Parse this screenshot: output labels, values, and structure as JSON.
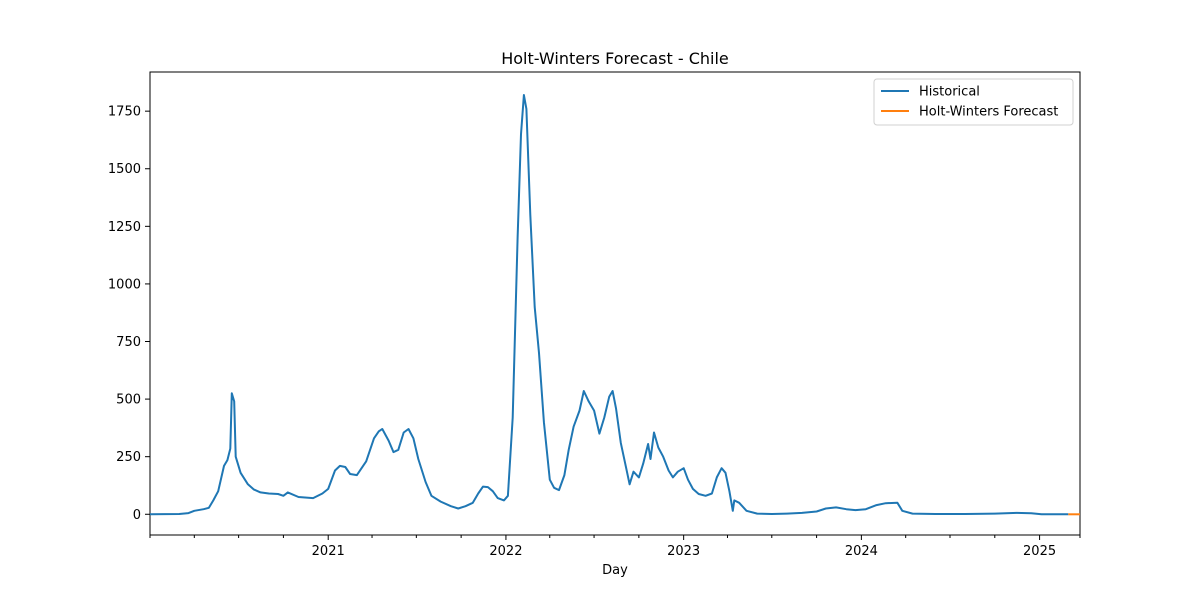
{
  "chart_data": {
    "type": "line",
    "title": "Holt-Winters Forecast - Chile",
    "xlabel": "Day",
    "ylabel": "",
    "ylim": [
      -90,
      1920
    ],
    "xlim": [
      "2020-01-01",
      "2025-03-25"
    ],
    "yticks": [
      0,
      250,
      500,
      750,
      1000,
      1250,
      1500,
      1750
    ],
    "xticks": [
      {
        "date": "2021-01-01",
        "label": "2021"
      },
      {
        "date": "2022-01-01",
        "label": "2022"
      },
      {
        "date": "2023-01-01",
        "label": "2023"
      },
      {
        "date": "2024-01-01",
        "label": "2024"
      },
      {
        "date": "2025-01-01",
        "label": "2025"
      }
    ],
    "minor_xticks": [
      "2020-01-01",
      "2020-04-01",
      "2020-07-01",
      "2020-10-01",
      "2021-04-01",
      "2021-07-01",
      "2021-10-01",
      "2022-04-01",
      "2022-07-01",
      "2022-10-01",
      "2023-04-01",
      "2023-07-01",
      "2023-10-01",
      "2024-04-01",
      "2024-07-01",
      "2024-10-01",
      "2025-03-25"
    ],
    "legend_position": "top-right",
    "series": [
      {
        "name": "Historical",
        "color": "#1f77b4",
        "points": [
          [
            "2020-01-01",
            0
          ],
          [
            "2020-03-01",
            1
          ],
          [
            "2020-03-20",
            5
          ],
          [
            "2020-04-01",
            15
          ],
          [
            "2020-04-20",
            22
          ],
          [
            "2020-05-01",
            28
          ],
          [
            "2020-05-10",
            60
          ],
          [
            "2020-05-20",
            100
          ],
          [
            "2020-06-01",
            210
          ],
          [
            "2020-06-08",
            235
          ],
          [
            "2020-06-14",
            285
          ],
          [
            "2020-06-17",
            525
          ],
          [
            "2020-06-22",
            490
          ],
          [
            "2020-06-25",
            250
          ],
          [
            "2020-07-05",
            180
          ],
          [
            "2020-07-20",
            130
          ],
          [
            "2020-08-01",
            108
          ],
          [
            "2020-08-15",
            95
          ],
          [
            "2020-09-01",
            90
          ],
          [
            "2020-09-20",
            88
          ],
          [
            "2020-10-01",
            80
          ],
          [
            "2020-10-10",
            95
          ],
          [
            "2020-11-01",
            75
          ],
          [
            "2020-12-01",
            70
          ],
          [
            "2020-12-20",
            90
          ],
          [
            "2021-01-01",
            110
          ],
          [
            "2021-01-15",
            190
          ],
          [
            "2021-01-25",
            210
          ],
          [
            "2021-02-05",
            205
          ],
          [
            "2021-02-15",
            175
          ],
          [
            "2021-03-01",
            170
          ],
          [
            "2021-03-20",
            230
          ],
          [
            "2021-04-05",
            330
          ],
          [
            "2021-04-15",
            360
          ],
          [
            "2021-04-22",
            370
          ],
          [
            "2021-05-05",
            320
          ],
          [
            "2021-05-15",
            270
          ],
          [
            "2021-05-25",
            280
          ],
          [
            "2021-06-05",
            355
          ],
          [
            "2021-06-15",
            370
          ],
          [
            "2021-06-25",
            330
          ],
          [
            "2021-07-05",
            240
          ],
          [
            "2021-07-20",
            140
          ],
          [
            "2021-08-01",
            80
          ],
          [
            "2021-08-20",
            55
          ],
          [
            "2021-09-10",
            35
          ],
          [
            "2021-09-25",
            25
          ],
          [
            "2021-10-10",
            35
          ],
          [
            "2021-10-25",
            50
          ],
          [
            "2021-11-05",
            90
          ],
          [
            "2021-11-15",
            120
          ],
          [
            "2021-11-25",
            118
          ],
          [
            "2021-12-05",
            100
          ],
          [
            "2021-12-15",
            70
          ],
          [
            "2021-12-28",
            60
          ],
          [
            "2022-01-05",
            80
          ],
          [
            "2022-01-15",
            420
          ],
          [
            "2022-01-25",
            1200
          ],
          [
            "2022-02-01",
            1650
          ],
          [
            "2022-02-07",
            1820
          ],
          [
            "2022-02-12",
            1760
          ],
          [
            "2022-02-20",
            1300
          ],
          [
            "2022-03-01",
            900
          ],
          [
            "2022-03-10",
            700
          ],
          [
            "2022-03-20",
            400
          ],
          [
            "2022-04-01",
            150
          ],
          [
            "2022-04-10",
            115
          ],
          [
            "2022-04-20",
            105
          ],
          [
            "2022-05-01",
            170
          ],
          [
            "2022-05-10",
            280
          ],
          [
            "2022-05-20",
            380
          ],
          [
            "2022-06-01",
            450
          ],
          [
            "2022-06-10",
            535
          ],
          [
            "2022-06-20",
            490
          ],
          [
            "2022-07-01",
            450
          ],
          [
            "2022-07-12",
            350
          ],
          [
            "2022-07-22",
            420
          ],
          [
            "2022-08-01",
            510
          ],
          [
            "2022-08-08",
            535
          ],
          [
            "2022-08-15",
            460
          ],
          [
            "2022-08-25",
            310
          ],
          [
            "2022-09-05",
            200
          ],
          [
            "2022-09-12",
            130
          ],
          [
            "2022-09-20",
            185
          ],
          [
            "2022-10-01",
            160
          ],
          [
            "2022-10-10",
            220
          ],
          [
            "2022-10-20",
            305
          ],
          [
            "2022-10-25",
            240
          ],
          [
            "2022-11-01",
            355
          ],
          [
            "2022-11-10",
            290
          ],
          [
            "2022-11-20",
            250
          ],
          [
            "2022-12-01",
            190
          ],
          [
            "2022-12-10",
            160
          ],
          [
            "2022-12-20",
            185
          ],
          [
            "2023-01-01",
            200
          ],
          [
            "2023-01-10",
            150
          ],
          [
            "2023-01-20",
            110
          ],
          [
            "2023-02-01",
            88
          ],
          [
            "2023-02-15",
            80
          ],
          [
            "2023-02-28",
            90
          ],
          [
            "2023-03-10",
            160
          ],
          [
            "2023-03-20",
            200
          ],
          [
            "2023-03-28",
            180
          ],
          [
            "2023-04-05",
            100
          ],
          [
            "2023-04-12",
            15
          ],
          [
            "2023-04-15",
            60
          ],
          [
            "2023-04-25",
            50
          ],
          [
            "2023-05-10",
            15
          ],
          [
            "2023-06-01",
            3
          ],
          [
            "2023-07-01",
            1
          ],
          [
            "2023-08-01",
            3
          ],
          [
            "2023-09-01",
            6
          ],
          [
            "2023-10-01",
            12
          ],
          [
            "2023-10-20",
            25
          ],
          [
            "2023-11-10",
            30
          ],
          [
            "2023-12-01",
            22
          ],
          [
            "2023-12-20",
            18
          ],
          [
            "2024-01-10",
            22
          ],
          [
            "2024-02-01",
            40
          ],
          [
            "2024-02-20",
            48
          ],
          [
            "2024-03-15",
            50
          ],
          [
            "2024-03-25",
            15
          ],
          [
            "2024-04-15",
            3
          ],
          [
            "2024-06-01",
            1
          ],
          [
            "2024-08-01",
            1
          ],
          [
            "2024-10-01",
            3
          ],
          [
            "2024-11-15",
            6
          ],
          [
            "2024-12-15",
            4
          ],
          [
            "2025-01-05",
            0
          ],
          [
            "2025-03-01",
            0
          ]
        ]
      },
      {
        "name": "Holt-Winters Forecast",
        "color": "#ff7f0e",
        "points": [
          [
            "2025-03-01",
            0
          ],
          [
            "2025-03-25",
            0
          ]
        ]
      }
    ]
  }
}
